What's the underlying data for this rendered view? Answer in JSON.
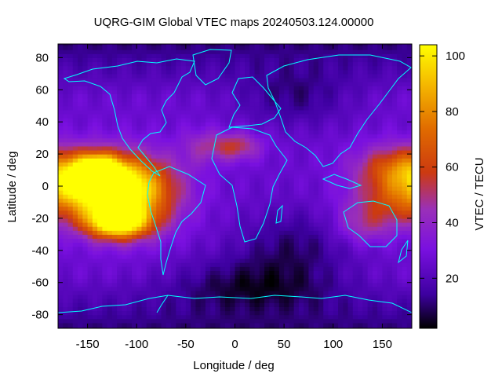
{
  "chart_data": {
    "type": "heatmap",
    "title": "UQRG-GIM Global VTEC maps 20240503.124.00000",
    "xlabel": "Longitude / deg",
    "ylabel": "Latitude / deg",
    "colorbar_label": "VTEC / TECU",
    "xlim": [
      -180,
      180
    ],
    "ylim": [
      -88.5,
      88.5
    ],
    "xticks": [
      -150,
      -100,
      -50,
      0,
      50,
      100,
      150
    ],
    "yticks": [
      -80,
      -60,
      -40,
      -20,
      0,
      20,
      40,
      60,
      80
    ],
    "colorbar_range": [
      2,
      104
    ],
    "colorbar_ticks": [
      20,
      40,
      60,
      80,
      100
    ],
    "colormap": [
      "#000000",
      "#3d00a0",
      "#7a10e0",
      "#9a30b8",
      "#cc3a10",
      "#e06a00",
      "#f5b800",
      "#ffff00"
    ],
    "coastline_color": "#00ffff",
    "grid": false,
    "map_features": [
      {
        "lon": -145,
        "lat": 2,
        "vtec": 90,
        "sx": 40,
        "sy": 12
      },
      {
        "lon": -140,
        "lat": 8,
        "vtec": 101,
        "sx": 14,
        "sy": 7
      },
      {
        "lon": -120,
        "lat": -22,
        "vtec": 100,
        "sx": 22,
        "sy": 7
      },
      {
        "lon": -110,
        "lat": -5,
        "vtec": 85,
        "sx": 35,
        "sy": 16
      },
      {
        "lon": 0,
        "lat": 25,
        "vtec": 55,
        "sx": 18,
        "sy": 6
      },
      {
        "lon": -35,
        "lat": 25,
        "vtec": 40,
        "sx": 15,
        "sy": 8
      },
      {
        "lon": 165,
        "lat": 12,
        "vtec": 58,
        "sx": 30,
        "sy": 10
      },
      {
        "lon": 155,
        "lat": -12,
        "vtec": 48,
        "sx": 30,
        "sy": 10
      },
      {
        "lon": 130,
        "lat": -25,
        "vtec": 42,
        "sx": 20,
        "sy": 8
      },
      {
        "lon": 60,
        "lat": -35,
        "vtec": 12,
        "sx": 40,
        "sy": 15
      },
      {
        "lon": 20,
        "lat": -60,
        "vtec": 8,
        "sx": 60,
        "sy": 12
      },
      {
        "lon": 60,
        "lat": 55,
        "vtec": 12,
        "sx": 40,
        "sy": 12
      }
    ]
  }
}
